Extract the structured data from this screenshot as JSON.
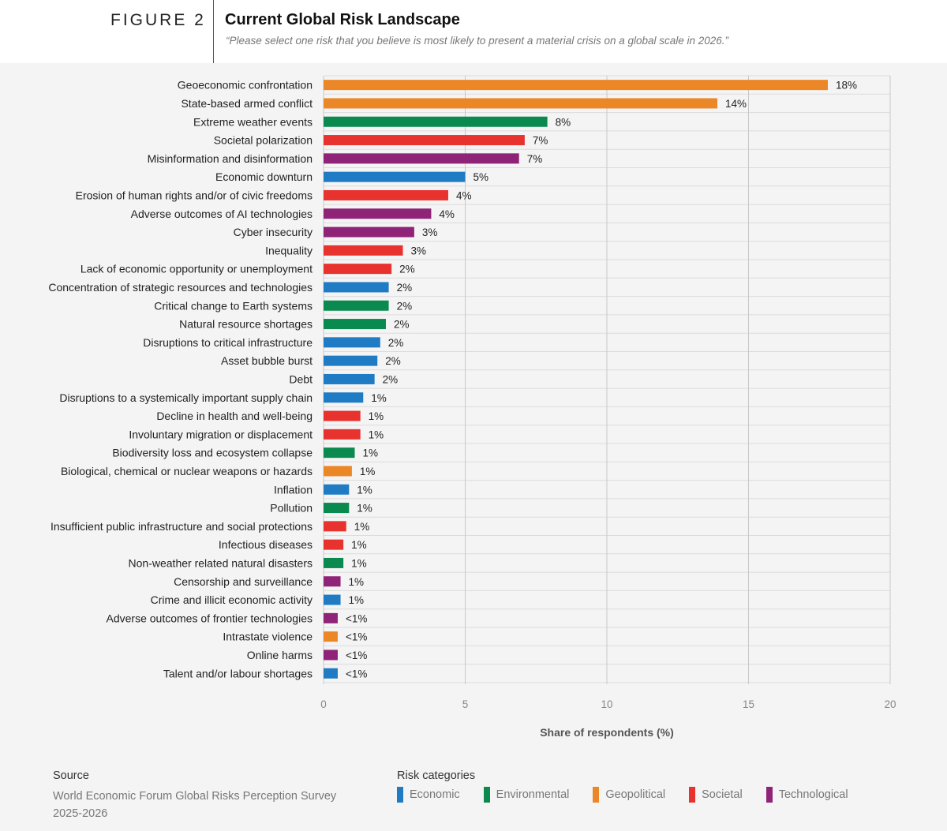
{
  "header": {
    "figure_label": "FIGURE 2",
    "title": "Current Global Risk Landscape",
    "subtitle": "“Please select one risk that you believe is most likely to present a material crisis on a global scale in 2026.”"
  },
  "chart_data": {
    "type": "bar",
    "orientation": "horizontal",
    "xlabel": "Share of respondents (%)",
    "xlim": [
      0,
      20
    ],
    "xticks": [
      0,
      5,
      10,
      15,
      20
    ],
    "grid": true,
    "categories": [
      "Geoeconomic confrontation",
      "State-based armed conflict",
      "Extreme weather events",
      "Societal polarization",
      "Misinformation and disinformation",
      "Economic downturn",
      "Erosion of human rights and/or of civic freedoms",
      "Adverse outcomes of AI technologies",
      "Cyber insecurity",
      "Inequality",
      "Lack of economic opportunity or unemployment",
      "Concentration of strategic resources and technologies",
      "Critical change to Earth systems",
      "Natural resource shortages",
      "Disruptions to critical infrastructure",
      "Asset bubble burst",
      "Debt",
      "Disruptions to a systemically important supply chain",
      "Decline in health and well-being",
      "Involuntary migration or displacement",
      "Biodiversity loss and ecosystem collapse",
      "Biological, chemical or nuclear weapons or hazards",
      "Inflation",
      "Pollution",
      "Insufficient public infrastructure and social protections",
      "Infectious diseases",
      "Non-weather related natural disasters",
      "Censorship and surveillance",
      "Crime and illicit economic activity",
      "Adverse outcomes of frontier technologies",
      "Intrastate violence",
      "Online harms",
      "Talent and/or labour shortages"
    ],
    "values": [
      17.8,
      13.9,
      7.9,
      7.1,
      6.9,
      5.0,
      4.4,
      3.8,
      3.2,
      2.8,
      2.4,
      2.3,
      2.3,
      2.2,
      2.0,
      1.9,
      1.8,
      1.4,
      1.3,
      1.3,
      1.1,
      1.0,
      0.9,
      0.9,
      0.8,
      0.7,
      0.7,
      0.6,
      0.6,
      0.5,
      0.5,
      0.5,
      0.5
    ],
    "value_labels": [
      "18%",
      "14%",
      "8%",
      "7%",
      "7%",
      "5%",
      "4%",
      "4%",
      "3%",
      "3%",
      "2%",
      "2%",
      "2%",
      "2%",
      "2%",
      "2%",
      "2%",
      "1%",
      "1%",
      "1%",
      "1%",
      "1%",
      "1%",
      "1%",
      "1%",
      "1%",
      "1%",
      "1%",
      "1%",
      "<1%",
      "<1%",
      "<1%",
      "<1%"
    ],
    "bar_categories": [
      "Geopolitical",
      "Geopolitical",
      "Environmental",
      "Societal",
      "Technological",
      "Economic",
      "Societal",
      "Technological",
      "Technological",
      "Societal",
      "Societal",
      "Economic",
      "Environmental",
      "Environmental",
      "Economic",
      "Economic",
      "Economic",
      "Economic",
      "Societal",
      "Societal",
      "Environmental",
      "Geopolitical",
      "Economic",
      "Environmental",
      "Societal",
      "Societal",
      "Environmental",
      "Technological",
      "Economic",
      "Technological",
      "Geopolitical",
      "Technological",
      "Economic"
    ]
  },
  "legend": {
    "title": "Risk categories",
    "items": [
      {
        "label": "Economic",
        "color": "#1e7bc4"
      },
      {
        "label": "Environmental",
        "color": "#0b8a4f"
      },
      {
        "label": "Geopolitical",
        "color": "#ec8728"
      },
      {
        "label": "Societal",
        "color": "#e8322e"
      },
      {
        "label": "Technological",
        "color": "#8e2377"
      }
    ]
  },
  "source": {
    "title": "Source",
    "text": "World Economic Forum Global Risks Perception Survey 2025-2026"
  }
}
